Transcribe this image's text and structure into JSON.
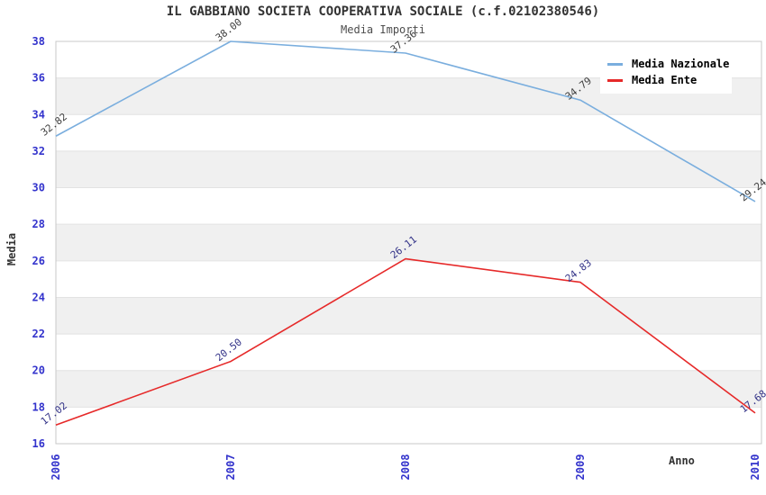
{
  "title": "IL GABBIANO SOCIETA COOPERATIVA SOCIALE (c.f.02102380546)",
  "subtitle": "Media Importi",
  "chart_data": {
    "type": "line",
    "title": "IL GABBIANO SOCIETA COOPERATIVA SOCIALE (c.f.02102380546)",
    "subtitle": "Media Importi",
    "categories": [
      "2006",
      "2007",
      "2008",
      "2009",
      "2010"
    ],
    "series": [
      {
        "name": "Media Nazionale",
        "values": [
          32.82,
          38.0,
          37.36,
          34.79,
          29.24
        ],
        "point_labels": [
          "32.82",
          "38.00",
          "37.36",
          "34.79",
          "29.24"
        ],
        "color": "#7aaede",
        "label_color": "#3d3d3d"
      },
      {
        "name": "Media Ente",
        "values": [
          17.02,
          20.5,
          26.11,
          24.83,
          17.68
        ],
        "point_labels": [
          "17.02",
          "20.50",
          "26.11",
          "24.83",
          "17.68"
        ],
        "color": "#e62929",
        "label_color": "#333388"
      }
    ],
    "xlabel": "Anno",
    "ylabel": "Media",
    "ylim": [
      16,
      38
    ],
    "ytick_step": 2,
    "yticks": [
      "16",
      "18",
      "20",
      "22",
      "24",
      "26",
      "28",
      "30",
      "32",
      "34",
      "36",
      "38"
    ],
    "grid": true,
    "legend_position": "top-right",
    "colors": {
      "tick_label": "#3333cc",
      "band": "#f0f0f0",
      "gridline": "#e2e2e2",
      "plot_border": "#c9c9c9",
      "title": "#333333",
      "subtitle": "#4d4d4d",
      "legend_text": "#000000"
    }
  }
}
